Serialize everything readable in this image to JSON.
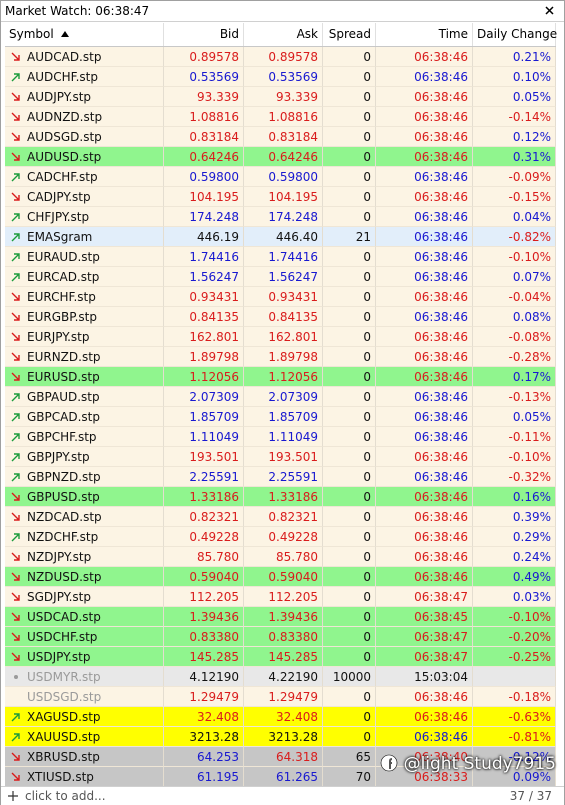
{
  "window": {
    "title": "Market Watch: 06:38:47"
  },
  "table": {
    "headers": [
      "Symbol",
      "Bid",
      "Ask",
      "Spread",
      "Time",
      "Daily Change"
    ],
    "colors": {
      "red": "#d91c1c",
      "blue": "#1818d0",
      "black": "#111111",
      "gray": "#9a9a9a",
      "up_arrow": "#1c9c3c",
      "down_arrow": "#d91c1c",
      "cream": "#fcf4e4",
      "green": "#90f58e",
      "lightblue": "#e2eefa",
      "lightgray": "#e8e8e8",
      "darkgray": "#c6c6c6",
      "yellow": "#ffff00"
    },
    "rows": [
      [
        "AUDCAD.stp",
        "0.89578",
        "0.89578",
        "0",
        "06:38:46",
        "0.21%"
      ],
      [
        "AUDCHF.stp",
        "0.53569",
        "0.53569",
        "0",
        "06:38:46",
        "0.10%"
      ],
      [
        "AUDJPY.stp",
        "93.339",
        "93.339",
        "0",
        "06:38:46",
        "0.05%"
      ],
      [
        "AUDNZD.stp",
        "1.08816",
        "1.08816",
        "0",
        "06:38:46",
        "-0.14%"
      ],
      [
        "AUDSGD.stp",
        "0.83184",
        "0.83184",
        "0",
        "06:38:46",
        "0.12%"
      ],
      [
        "AUDUSD.stp",
        "0.64246",
        "0.64246",
        "0",
        "06:38:46",
        "0.31%"
      ],
      [
        "CADCHF.stp",
        "0.59800",
        "0.59800",
        "0",
        "06:38:46",
        "-0.09%"
      ],
      [
        "CADJPY.stp",
        "104.195",
        "104.195",
        "0",
        "06:38:46",
        "-0.15%"
      ],
      [
        "CHFJPY.stp",
        "174.248",
        "174.248",
        "0",
        "06:38:46",
        "0.04%"
      ],
      [
        "EMASgram",
        "446.19",
        "446.40",
        "21",
        "06:38:46",
        "-0.82%"
      ],
      [
        "EURAUD.stp",
        "1.74416",
        "1.74416",
        "0",
        "06:38:46",
        "-0.10%"
      ],
      [
        "EURCAD.stp",
        "1.56247",
        "1.56247",
        "0",
        "06:38:46",
        "0.07%"
      ],
      [
        "EURCHF.stp",
        "0.93431",
        "0.93431",
        "0",
        "06:38:46",
        "-0.04%"
      ],
      [
        "EURGBP.stp",
        "0.84135",
        "0.84135",
        "0",
        "06:38:46",
        "0.08%"
      ],
      [
        "EURJPY.stp",
        "162.801",
        "162.801",
        "0",
        "06:38:46",
        "-0.08%"
      ],
      [
        "EURNZD.stp",
        "1.89798",
        "1.89798",
        "0",
        "06:38:46",
        "-0.28%"
      ],
      [
        "EURUSD.stp",
        "1.12056",
        "1.12056",
        "0",
        "06:38:46",
        "0.17%"
      ],
      [
        "GBPAUD.stp",
        "2.07309",
        "2.07309",
        "0",
        "06:38:46",
        "-0.13%"
      ],
      [
        "GBPCAD.stp",
        "1.85709",
        "1.85709",
        "0",
        "06:38:46",
        "0.05%"
      ],
      [
        "GBPCHF.stp",
        "1.11049",
        "1.11049",
        "0",
        "06:38:46",
        "-0.11%"
      ],
      [
        "GBPJPY.stp",
        "193.501",
        "193.501",
        "0",
        "06:38:46",
        "-0.10%"
      ],
      [
        "GBPNZD.stp",
        "2.25591",
        "2.25591",
        "0",
        "06:38:46",
        "-0.32%"
      ],
      [
        "GBPUSD.stp",
        "1.33186",
        "1.33186",
        "0",
        "06:38:46",
        "0.16%"
      ],
      [
        "NZDCAD.stp",
        "0.82321",
        "0.82321",
        "0",
        "06:38:46",
        "0.39%"
      ],
      [
        "NZDCHF.stp",
        "0.49228",
        "0.49228",
        "0",
        "06:38:46",
        "0.29%"
      ],
      [
        "NZDJPY.stp",
        "85.780",
        "85.780",
        "0",
        "06:38:46",
        "0.24%"
      ],
      [
        "NZDUSD.stp",
        "0.59040",
        "0.59040",
        "0",
        "06:38:46",
        "0.49%"
      ],
      [
        "SGDJPY.stp",
        "112.205",
        "112.205",
        "0",
        "06:38:47",
        "0.03%"
      ],
      [
        "USDCAD.stp",
        "1.39436",
        "1.39436",
        "0",
        "06:38:45",
        "-0.10%"
      ],
      [
        "USDCHF.stp",
        "0.83380",
        "0.83380",
        "0",
        "06:38:47",
        "-0.20%"
      ],
      [
        "USDJPY.stp",
        "145.285",
        "145.285",
        "0",
        "06:38:47",
        "-0.25%"
      ],
      [
        "USDMYR.stp",
        "4.12190",
        "4.22190",
        "10000",
        "15:03:04",
        null
      ],
      [
        "USDSGD.stp",
        "1.29479",
        "1.29479",
        "0",
        "06:38:46",
        "-0.18%"
      ],
      [
        "XAGUSD.stp",
        "32.408",
        "32.408",
        "0",
        "06:38:46",
        "-0.63%"
      ],
      [
        "XAUUSD.stp",
        "3213.28",
        "3213.28",
        "0",
        "06:38:46",
        "-0.81%"
      ],
      [
        "XBRUSD.stp",
        "64.253",
        "64.318",
        "65",
        "06:38:40",
        "-0.12%"
      ],
      [
        "XTIUSD.stp",
        "61.195",
        "61.265",
        "70",
        "06:38:33",
        "0.09%"
      ]
    ],
    "row_styles": [
      [
        "down",
        "cream",
        "red",
        "red",
        "red",
        "blue",
        "black"
      ],
      [
        "up",
        "cream",
        "blue",
        "blue",
        "blue",
        "blue",
        "black"
      ],
      [
        "down",
        "cream",
        "red",
        "red",
        "red",
        "blue",
        "black"
      ],
      [
        "down",
        "cream",
        "red",
        "red",
        "red",
        "red",
        "black"
      ],
      [
        "down",
        "cream",
        "red",
        "red",
        "red",
        "blue",
        "black"
      ],
      [
        "down",
        "green",
        "red",
        "red",
        "red",
        "blue",
        "black"
      ],
      [
        "up",
        "cream",
        "blue",
        "blue",
        "blue",
        "red",
        "black"
      ],
      [
        "down",
        "cream",
        "red",
        "red",
        "red",
        "red",
        "black"
      ],
      [
        "up",
        "cream",
        "blue",
        "blue",
        "blue",
        "blue",
        "black"
      ],
      [
        "up",
        "lightblue",
        "black",
        "black",
        "blue",
        "red",
        "black"
      ],
      [
        "up",
        "cream",
        "blue",
        "blue",
        "blue",
        "red",
        "black"
      ],
      [
        "up",
        "cream",
        "blue",
        "blue",
        "blue",
        "blue",
        "black"
      ],
      [
        "down",
        "cream",
        "red",
        "red",
        "red",
        "red",
        "black"
      ],
      [
        "down",
        "cream",
        "red",
        "red",
        "blue",
        "blue",
        "black"
      ],
      [
        "down",
        "cream",
        "red",
        "red",
        "red",
        "red",
        "black"
      ],
      [
        "down",
        "cream",
        "red",
        "red",
        "red",
        "red",
        "black"
      ],
      [
        "down",
        "green",
        "red",
        "red",
        "red",
        "blue",
        "black"
      ],
      [
        "up",
        "cream",
        "blue",
        "blue",
        "blue",
        "red",
        "black"
      ],
      [
        "up",
        "cream",
        "blue",
        "blue",
        "blue",
        "blue",
        "black"
      ],
      [
        "up",
        "cream",
        "blue",
        "blue",
        "blue",
        "red",
        "black"
      ],
      [
        "up",
        "cream",
        "red",
        "red",
        "red",
        "red",
        "black"
      ],
      [
        "up",
        "cream",
        "blue",
        "blue",
        "blue",
        "red",
        "black"
      ],
      [
        "down",
        "green",
        "red",
        "red",
        "red",
        "blue",
        "black"
      ],
      [
        "down",
        "cream",
        "red",
        "red",
        "red",
        "blue",
        "black"
      ],
      [
        "up",
        "cream",
        "red",
        "red",
        "red",
        "blue",
        "black"
      ],
      [
        "down",
        "cream",
        "red",
        "red",
        "red",
        "blue",
        "black"
      ],
      [
        "down",
        "green",
        "red",
        "red",
        "red",
        "blue",
        "black"
      ],
      [
        "down",
        "cream",
        "red",
        "red",
        "red",
        "blue",
        "black"
      ],
      [
        "down",
        "green",
        "red",
        "red",
        "red",
        "red",
        "black"
      ],
      [
        "down",
        "green",
        "red",
        "red",
        "red",
        "red",
        "black"
      ],
      [
        "down",
        "green",
        "red",
        "red",
        "red",
        "red",
        "black"
      ],
      [
        "dot",
        "lightgray",
        "black",
        "black",
        "black",
        "black",
        "gray"
      ],
      [
        "none",
        "cream",
        "red",
        "red",
        "red",
        "red",
        "gray"
      ],
      [
        "up",
        "yellow",
        "red",
        "red",
        "red",
        "red",
        "black"
      ],
      [
        "up",
        "yellow",
        "black",
        "black",
        "blue",
        "red",
        "black"
      ],
      [
        "down",
        "darkgray",
        "blue",
        "red",
        "red",
        "blue",
        "black"
      ],
      [
        "down",
        "darkgray",
        "blue",
        "blue",
        "red",
        "blue",
        "black"
      ]
    ]
  },
  "footer": {
    "add": "click to add...",
    "count": "37 / 37"
  },
  "watermark": "@light Study7915"
}
